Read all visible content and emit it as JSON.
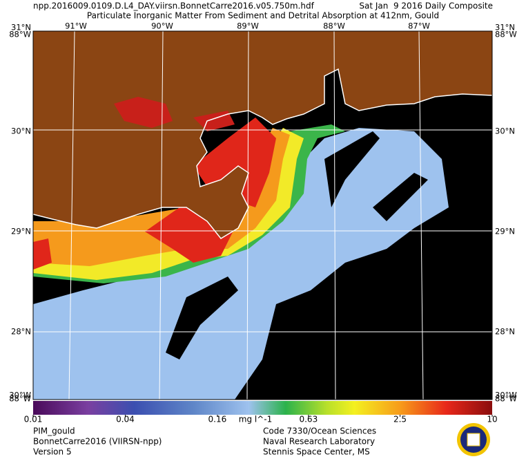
{
  "header": {
    "filename": "npp.2016009.0109.D.L4_DAY.viirsn.BonnetCarre2016.v05.750m.hdf",
    "date": "Sat Jan  9 2016 Daily Composite",
    "title": "Particulate Inorganic Matter From Sediment and Detrital Absorption at 412nm, Gould"
  },
  "map": {
    "lon_labels": [
      "91°W",
      "90°W",
      "89°W",
      "88°W",
      "87°W"
    ],
    "lat_labels": [
      "30°N",
      "29°N",
      "28°N"
    ],
    "corner_top": [
      "31°N",
      "88°W"
    ],
    "corner_bottom": [
      "30°W",
      "88°W"
    ]
  },
  "colorbar": {
    "ticks": [
      0.01,
      0.04,
      0.16,
      0.63,
      2.5,
      10
    ],
    "unit": "mg l^-1",
    "log": true
  },
  "footer": {
    "left": [
      "PIM_gould",
      "BonnetCarre2016 (VIIRSN-npp)",
      "Version 5"
    ],
    "right": [
      "Code 7330/Ocean Sciences",
      "Naval Research Laboratory",
      "Stennis Space Center, MS"
    ]
  }
}
